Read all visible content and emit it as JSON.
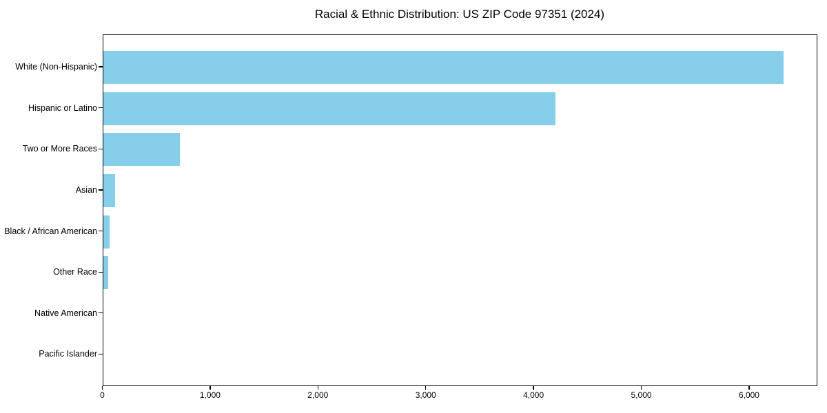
{
  "title": "Racial & Ethnic Distribution: US ZIP Code 97351 (2024)",
  "colors": {
    "bar": "#87CEEB",
    "axis": "#000000",
    "background": "#ffffff",
    "text": "#000000"
  },
  "chart_data": {
    "type": "bar",
    "orientation": "horizontal",
    "title": "Racial & Ethnic Distribution: US ZIP Code 97351 (2024)",
    "categories": [
      "White (Non-Hispanic)",
      "Hispanic or Latino",
      "Two or More Races",
      "Asian",
      "Black / African American",
      "Other Race",
      "Native American",
      "Pacific Islander"
    ],
    "values": [
      6315,
      4200,
      710,
      110,
      62,
      48,
      0,
      0
    ],
    "xlabel": "",
    "ylabel": "",
    "xlim": [
      0,
      6630
    ],
    "x_ticks": [
      0,
      1000,
      2000,
      3000,
      4000,
      5000,
      6000
    ],
    "x_tick_labels": [
      "0",
      "1,000",
      "2,000",
      "3,000",
      "4,000",
      "5,000",
      "6,000"
    ],
    "grid": false,
    "legend": null,
    "bar_color": "#87CEEB"
  }
}
